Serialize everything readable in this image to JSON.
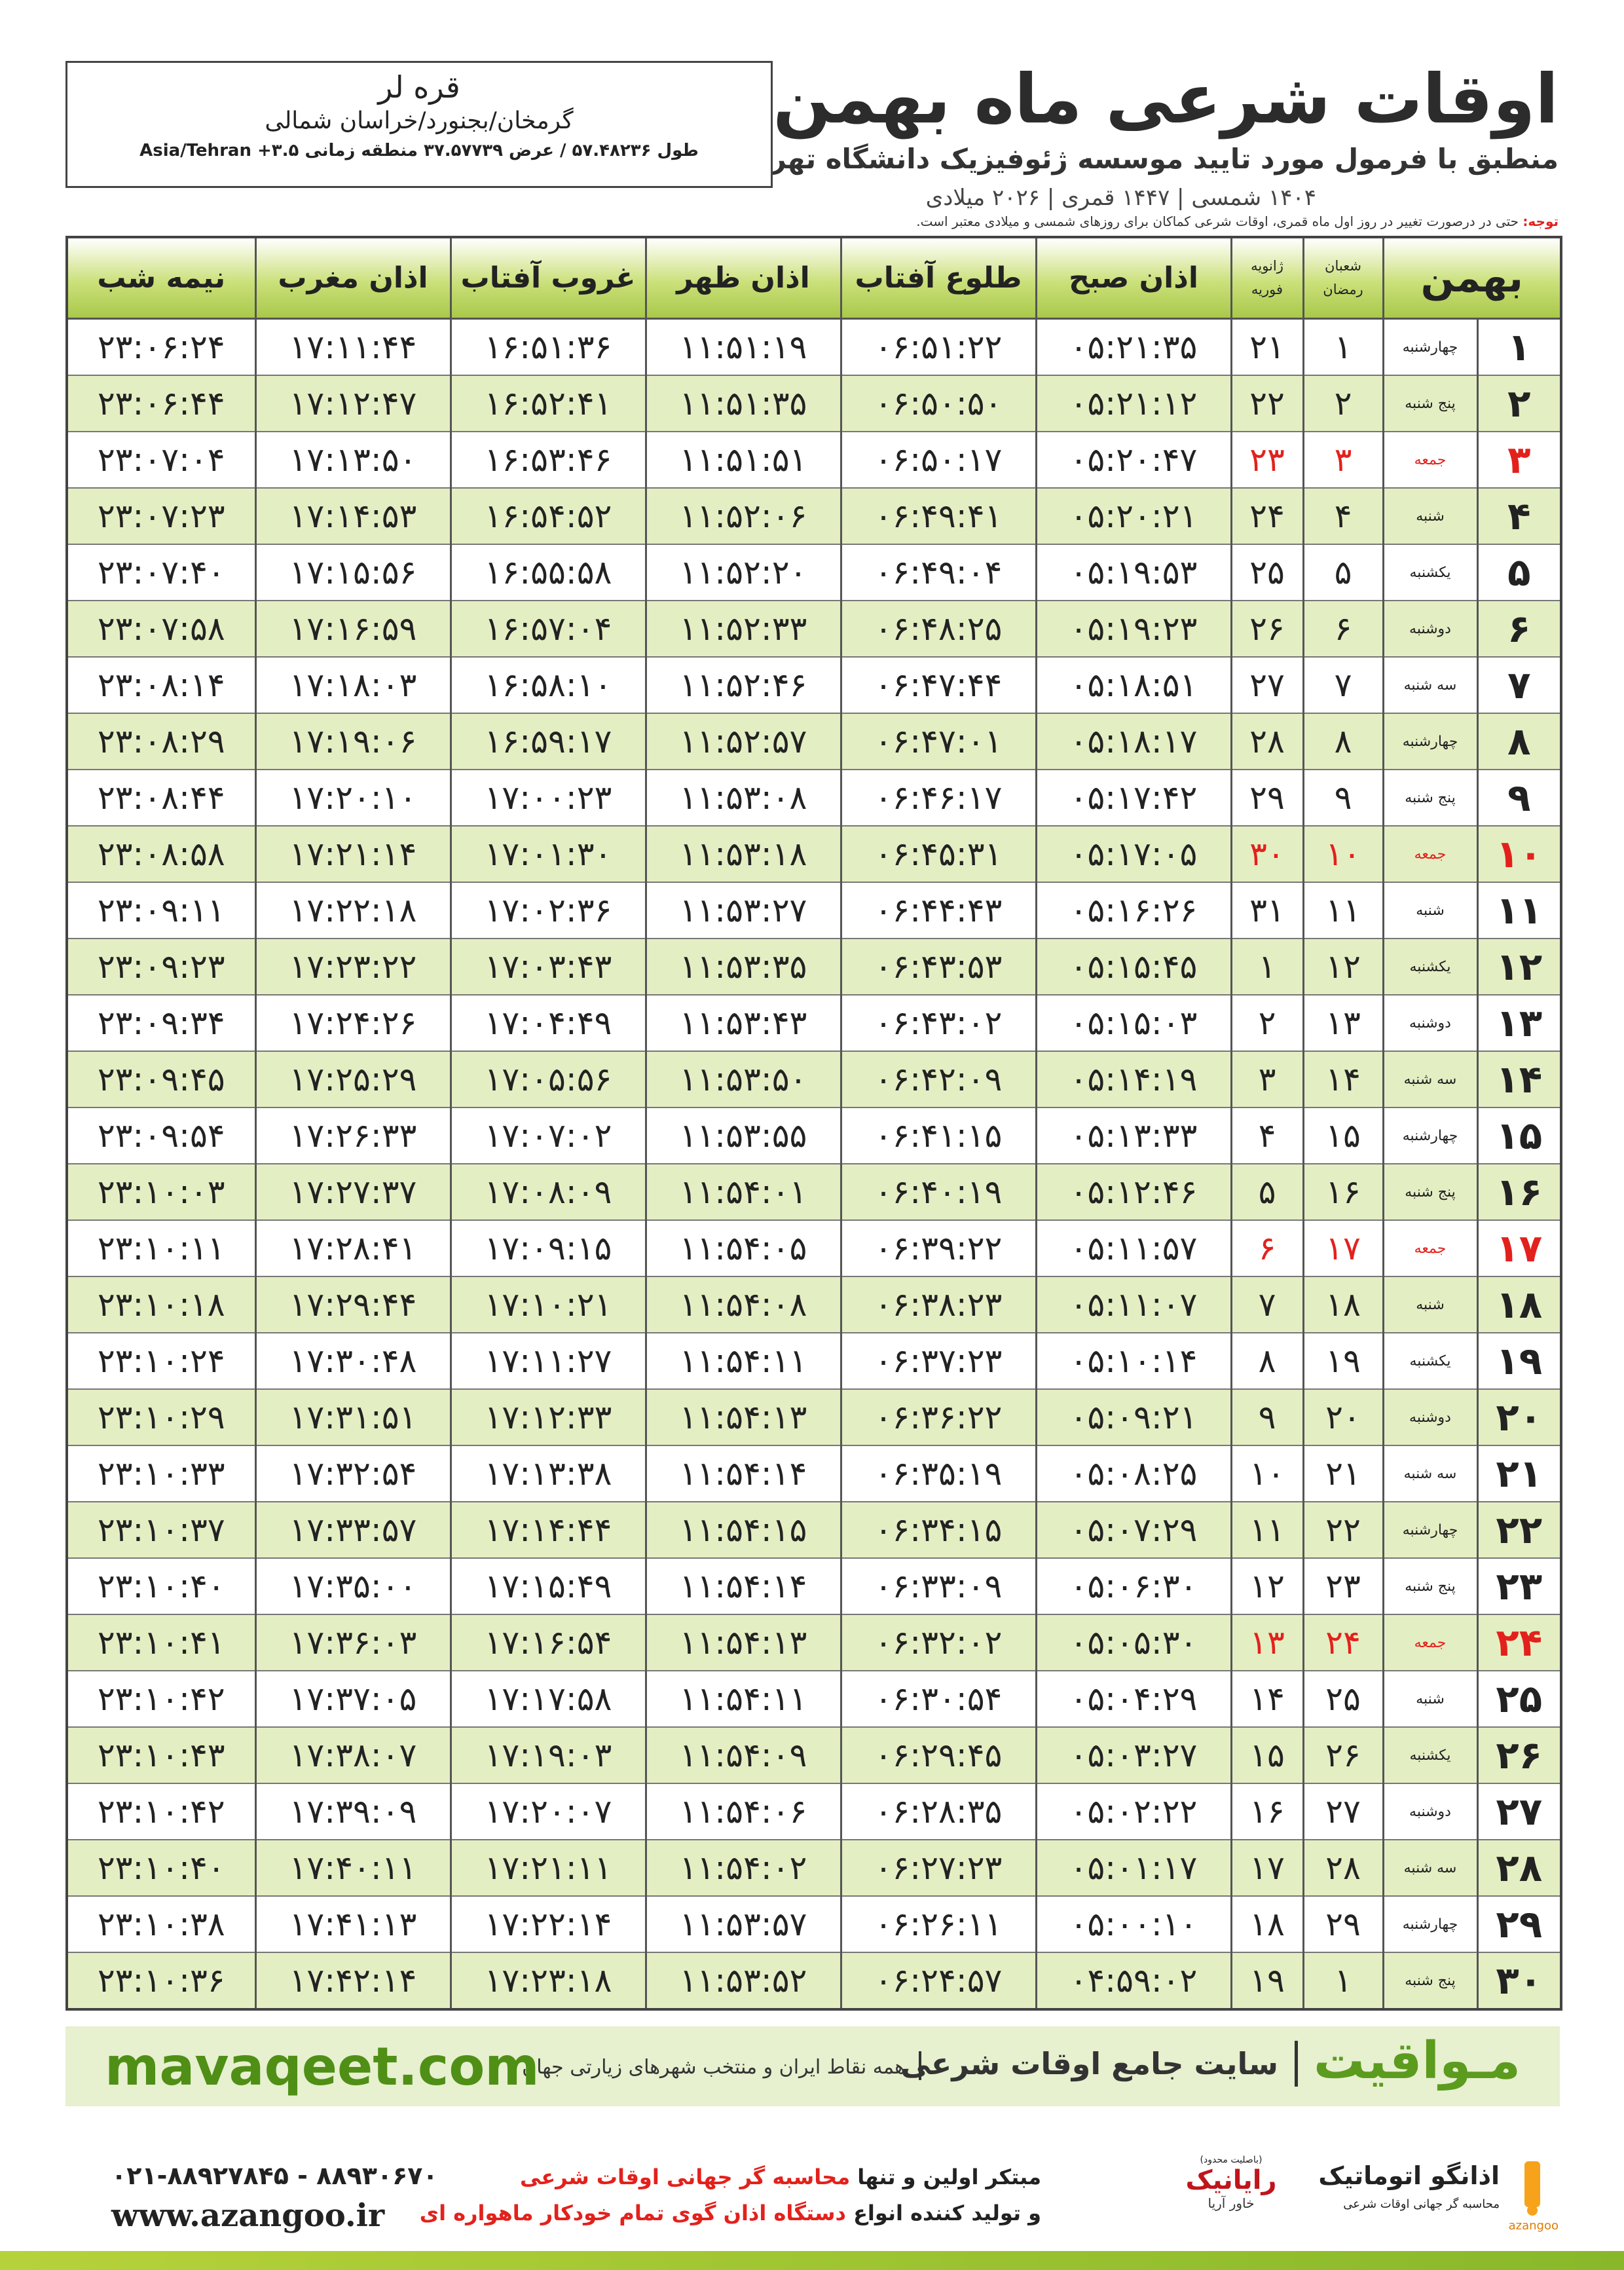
{
  "header": {
    "title": "اوقات شرعی ماه بهمن",
    "subtitle": "منطبق با فرمول مورد تایید موسسه ژئوفیزیک دانشگاه تهران",
    "dates": "۱۴۰۴ شمسی | ۱۴۴۷ قمری | ۲۰۲۶ میلادی"
  },
  "location": {
    "name": "قره لر",
    "region": "گرمخان/بجنورد/خراسان شمالی",
    "coords": "طول ۵۷.۴۸۲۳۶ / عرض ۳۷.۵۷۷۳۹ منطقه زمانی ۳.۵+ Asia/Tehran"
  },
  "note": {
    "label": "توجه:",
    "text": "حتی در درصورت تغییر در روز اول ماه قمری، اوقات شرعی کماکان برای روزهای شمسی و میلادی معتبر است."
  },
  "table": {
    "highlight_color": "#e3211c",
    "columns": [
      "بهمن",
      [
        "شعبان",
        "رمضان"
      ],
      [
        "ژانویه",
        "فوریه"
      ],
      "اذان صبح",
      "طلوع آفتاب",
      "اذان ظهر",
      "غروب آفتاب",
      "اذان مغرب",
      "نیمه شب"
    ],
    "rows": [
      {
        "cells": [
          "۱",
          "چهارشنبه",
          "۱",
          "۲۱",
          "۰۵:۲۱:۳۵",
          "۰۶:۵۱:۲۲",
          "۱۱:۵۱:۱۹",
          "۱۶:۵۱:۳۶",
          "۱۷:۱۱:۴۴",
          "۲۳:۰۶:۲۴"
        ]
      },
      {
        "cells": [
          "۲",
          "پنج شنبه",
          "۲",
          "۲۲",
          "۰۵:۲۱:۱۲",
          "۰۶:۵۰:۵۰",
          "۱۱:۵۱:۳۵",
          "۱۶:۵۲:۴۱",
          "۱۷:۱۲:۴۷",
          "۲۳:۰۶:۴۴"
        ]
      },
      {
        "cells": [
          "۳",
          "جمعه",
          "۳",
          "۲۳",
          "۰۵:۲۰:۴۷",
          "۰۶:۵۰:۱۷",
          "۱۱:۵۱:۵۱",
          "۱۶:۵۳:۴۶",
          "۱۷:۱۳:۵۰",
          "۲۳:۰۷:۰۴"
        ],
        "holiday": true
      },
      {
        "cells": [
          "۴",
          "شنبه",
          "۴",
          "۲۴",
          "۰۵:۲۰:۲۱",
          "۰۶:۴۹:۴۱",
          "۱۱:۵۲:۰۶",
          "۱۶:۵۴:۵۲",
          "۱۷:۱۴:۵۳",
          "۲۳:۰۷:۲۳"
        ]
      },
      {
        "cells": [
          "۵",
          "یکشنبه",
          "۵",
          "۲۵",
          "۰۵:۱۹:۵۳",
          "۰۶:۴۹:۰۴",
          "۱۱:۵۲:۲۰",
          "۱۶:۵۵:۵۸",
          "۱۷:۱۵:۵۶",
          "۲۳:۰۷:۴۰"
        ]
      },
      {
        "cells": [
          "۶",
          "دوشنبه",
          "۶",
          "۲۶",
          "۰۵:۱۹:۲۳",
          "۰۶:۴۸:۲۵",
          "۱۱:۵۲:۳۳",
          "۱۶:۵۷:۰۴",
          "۱۷:۱۶:۵۹",
          "۲۳:۰۷:۵۸"
        ]
      },
      {
        "cells": [
          "۷",
          "سه شنبه",
          "۷",
          "۲۷",
          "۰۵:۱۸:۵۱",
          "۰۶:۴۷:۴۴",
          "۱۱:۵۲:۴۶",
          "۱۶:۵۸:۱۰",
          "۱۷:۱۸:۰۳",
          "۲۳:۰۸:۱۴"
        ]
      },
      {
        "cells": [
          "۸",
          "چهارشنبه",
          "۸",
          "۲۸",
          "۰۵:۱۸:۱۷",
          "۰۶:۴۷:۰۱",
          "۱۱:۵۲:۵۷",
          "۱۶:۵۹:۱۷",
          "۱۷:۱۹:۰۶",
          "۲۳:۰۸:۲۹"
        ]
      },
      {
        "cells": [
          "۹",
          "پنج شنبه",
          "۹",
          "۲۹",
          "۰۵:۱۷:۴۲",
          "۰۶:۴۶:۱۷",
          "۱۱:۵۳:۰۸",
          "۱۷:۰۰:۲۳",
          "۱۷:۲۰:۱۰",
          "۲۳:۰۸:۴۴"
        ]
      },
      {
        "cells": [
          "۱۰",
          "جمعه",
          "۱۰",
          "۳۰",
          "۰۵:۱۷:۰۵",
          "۰۶:۴۵:۳۱",
          "۱۱:۵۳:۱۸",
          "۱۷:۰۱:۳۰",
          "۱۷:۲۱:۱۴",
          "۲۳:۰۸:۵۸"
        ],
        "holiday": true
      },
      {
        "cells": [
          "۱۱",
          "شنبه",
          "۱۱",
          "۳۱",
          "۰۵:۱۶:۲۶",
          "۰۶:۴۴:۴۳",
          "۱۱:۵۳:۲۷",
          "۱۷:۰۲:۳۶",
          "۱۷:۲۲:۱۸",
          "۲۳:۰۹:۱۱"
        ]
      },
      {
        "cells": [
          "۱۲",
          "یکشنبه",
          "۱۲",
          "۱",
          "۰۵:۱۵:۴۵",
          "۰۶:۴۳:۵۳",
          "۱۱:۵۳:۳۵",
          "۱۷:۰۳:۴۳",
          "۱۷:۲۳:۲۲",
          "۲۳:۰۹:۲۳"
        ]
      },
      {
        "cells": [
          "۱۳",
          "دوشنبه",
          "۱۳",
          "۲",
          "۰۵:۱۵:۰۳",
          "۰۶:۴۳:۰۲",
          "۱۱:۵۳:۴۳",
          "۱۷:۰۴:۴۹",
          "۱۷:۲۴:۲۶",
          "۲۳:۰۹:۳۴"
        ]
      },
      {
        "cells": [
          "۱۴",
          "سه شنبه",
          "۱۴",
          "۳",
          "۰۵:۱۴:۱۹",
          "۰۶:۴۲:۰۹",
          "۱۱:۵۳:۵۰",
          "۱۷:۰۵:۵۶",
          "۱۷:۲۵:۲۹",
          "۲۳:۰۹:۴۵"
        ]
      },
      {
        "cells": [
          "۱۵",
          "چهارشنبه",
          "۱۵",
          "۴",
          "۰۵:۱۳:۳۳",
          "۰۶:۴۱:۱۵",
          "۱۱:۵۳:۵۵",
          "۱۷:۰۷:۰۲",
          "۱۷:۲۶:۳۳",
          "۲۳:۰۹:۵۴"
        ]
      },
      {
        "cells": [
          "۱۶",
          "پنج شنبه",
          "۱۶",
          "۵",
          "۰۵:۱۲:۴۶",
          "۰۶:۴۰:۱۹",
          "۱۱:۵۴:۰۱",
          "۱۷:۰۸:۰۹",
          "۱۷:۲۷:۳۷",
          "۲۳:۱۰:۰۳"
        ]
      },
      {
        "cells": [
          "۱۷",
          "جمعه",
          "۱۷",
          "۶",
          "۰۵:۱۱:۵۷",
          "۰۶:۳۹:۲۲",
          "۱۱:۵۴:۰۵",
          "۱۷:۰۹:۱۵",
          "۱۷:۲۸:۴۱",
          "۲۳:۱۰:۱۱"
        ],
        "holiday": true
      },
      {
        "cells": [
          "۱۸",
          "شنبه",
          "۱۸",
          "۷",
          "۰۵:۱۱:۰۷",
          "۰۶:۳۸:۲۳",
          "۱۱:۵۴:۰۸",
          "۱۷:۱۰:۲۱",
          "۱۷:۲۹:۴۴",
          "۲۳:۱۰:۱۸"
        ]
      },
      {
        "cells": [
          "۱۹",
          "یکشنبه",
          "۱۹",
          "۸",
          "۰۵:۱۰:۱۴",
          "۰۶:۳۷:۲۳",
          "۱۱:۵۴:۱۱",
          "۱۷:۱۱:۲۷",
          "۱۷:۳۰:۴۸",
          "۲۳:۱۰:۲۴"
        ]
      },
      {
        "cells": [
          "۲۰",
          "دوشنبه",
          "۲۰",
          "۹",
          "۰۵:۰۹:۲۱",
          "۰۶:۳۶:۲۲",
          "۱۱:۵۴:۱۳",
          "۱۷:۱۲:۳۳",
          "۱۷:۳۱:۵۱",
          "۲۳:۱۰:۲۹"
        ]
      },
      {
        "cells": [
          "۲۱",
          "سه شنبه",
          "۲۱",
          "۱۰",
          "۰۵:۰۸:۲۵",
          "۰۶:۳۵:۱۹",
          "۱۱:۵۴:۱۴",
          "۱۷:۱۳:۳۸",
          "۱۷:۳۲:۵۴",
          "۲۳:۱۰:۳۳"
        ]
      },
      {
        "cells": [
          "۲۲",
          "چهارشنبه",
          "۲۲",
          "۱۱",
          "۰۵:۰۷:۲۹",
          "۰۶:۳۴:۱۵",
          "۱۱:۵۴:۱۵",
          "۱۷:۱۴:۴۴",
          "۱۷:۳۳:۵۷",
          "۲۳:۱۰:۳۷"
        ]
      },
      {
        "cells": [
          "۲۳",
          "پنج شنبه",
          "۲۳",
          "۱۲",
          "۰۵:۰۶:۳۰",
          "۰۶:۳۳:۰۹",
          "۱۱:۵۴:۱۴",
          "۱۷:۱۵:۴۹",
          "۱۷:۳۵:۰۰",
          "۲۳:۱۰:۴۰"
        ]
      },
      {
        "cells": [
          "۲۴",
          "جمعه",
          "۲۴",
          "۱۳",
          "۰۵:۰۵:۳۰",
          "۰۶:۳۲:۰۲",
          "۱۱:۵۴:۱۳",
          "۱۷:۱۶:۵۴",
          "۱۷:۳۶:۰۳",
          "۲۳:۱۰:۴۱"
        ],
        "holiday": true
      },
      {
        "cells": [
          "۲۵",
          "شنبه",
          "۲۵",
          "۱۴",
          "۰۵:۰۴:۲۹",
          "۰۶:۳۰:۵۴",
          "۱۱:۵۴:۱۱",
          "۱۷:۱۷:۵۸",
          "۱۷:۳۷:۰۵",
          "۲۳:۱۰:۴۲"
        ]
      },
      {
        "cells": [
          "۲۶",
          "یکشنبه",
          "۲۶",
          "۱۵",
          "۰۵:۰۳:۲۷",
          "۰۶:۲۹:۴۵",
          "۱۱:۵۴:۰۹",
          "۱۷:۱۹:۰۳",
          "۱۷:۳۸:۰۷",
          "۲۳:۱۰:۴۳"
        ]
      },
      {
        "cells": [
          "۲۷",
          "دوشنبه",
          "۲۷",
          "۱۶",
          "۰۵:۰۲:۲۲",
          "۰۶:۲۸:۳۵",
          "۱۱:۵۴:۰۶",
          "۱۷:۲۰:۰۷",
          "۱۷:۳۹:۰۹",
          "۲۳:۱۰:۴۲"
        ]
      },
      {
        "cells": [
          "۲۸",
          "سه شنبه",
          "۲۸",
          "۱۷",
          "۰۵:۰۱:۱۷",
          "۰۶:۲۷:۲۳",
          "۱۱:۵۴:۰۲",
          "۱۷:۲۱:۱۱",
          "۱۷:۴۰:۱۱",
          "۲۳:۱۰:۴۰"
        ]
      },
      {
        "cells": [
          "۲۹",
          "چهارشنبه",
          "۲۹",
          "۱۸",
          "۰۵:۰۰:۱۰",
          "۰۶:۲۶:۱۱",
          "۱۱:۵۳:۵۷",
          "۱۷:۲۲:۱۴",
          "۱۷:۴۱:۱۳",
          "۲۳:۱۰:۳۸"
        ]
      },
      {
        "cells": [
          "۳۰",
          "پنج شنبه",
          "۱",
          "۱۹",
          "۰۴:۵۹:۰۲",
          "۰۶:۲۴:۵۷",
          "۱۱:۵۳:۵۲",
          "۱۷:۲۳:۱۸",
          "۱۷:۴۲:۱۴",
          "۲۳:۱۰:۳۶"
        ]
      }
    ]
  },
  "banner": {
    "brand": "مـواقیت",
    "tagline": "سایت جامع اوقات شرعی",
    "scope": "همه نقاط ایران و منتخب شهرهای زیارتی جهان",
    "url": "mavaqeet.com"
  },
  "footer": {
    "phone": "۰۲۱-۸۸۹۲۷۸۴۵ - ۸۸۹۳۰۶۷۰",
    "website": "www.azangoo.ir",
    "line1_a": "مبتکر اولین و تنها",
    "line1_b": "محاسبه گر جهانی اوقات شرعی",
    "line2_a": "و تولید کننده انواع",
    "line2_b": "دستگاه اذان گوی تمام خودکار ماهواره ای",
    "logo1_note": "(باصلیت محدود)",
    "logo1_name": "رایانیک",
    "logo1_sub": "خاور آریا",
    "logo2_name": "اذانگو اتوماتیک",
    "logo2_sub": "محاسبه گر جهانی اوقات شرعی",
    "logo2_latin": "azangoo"
  }
}
